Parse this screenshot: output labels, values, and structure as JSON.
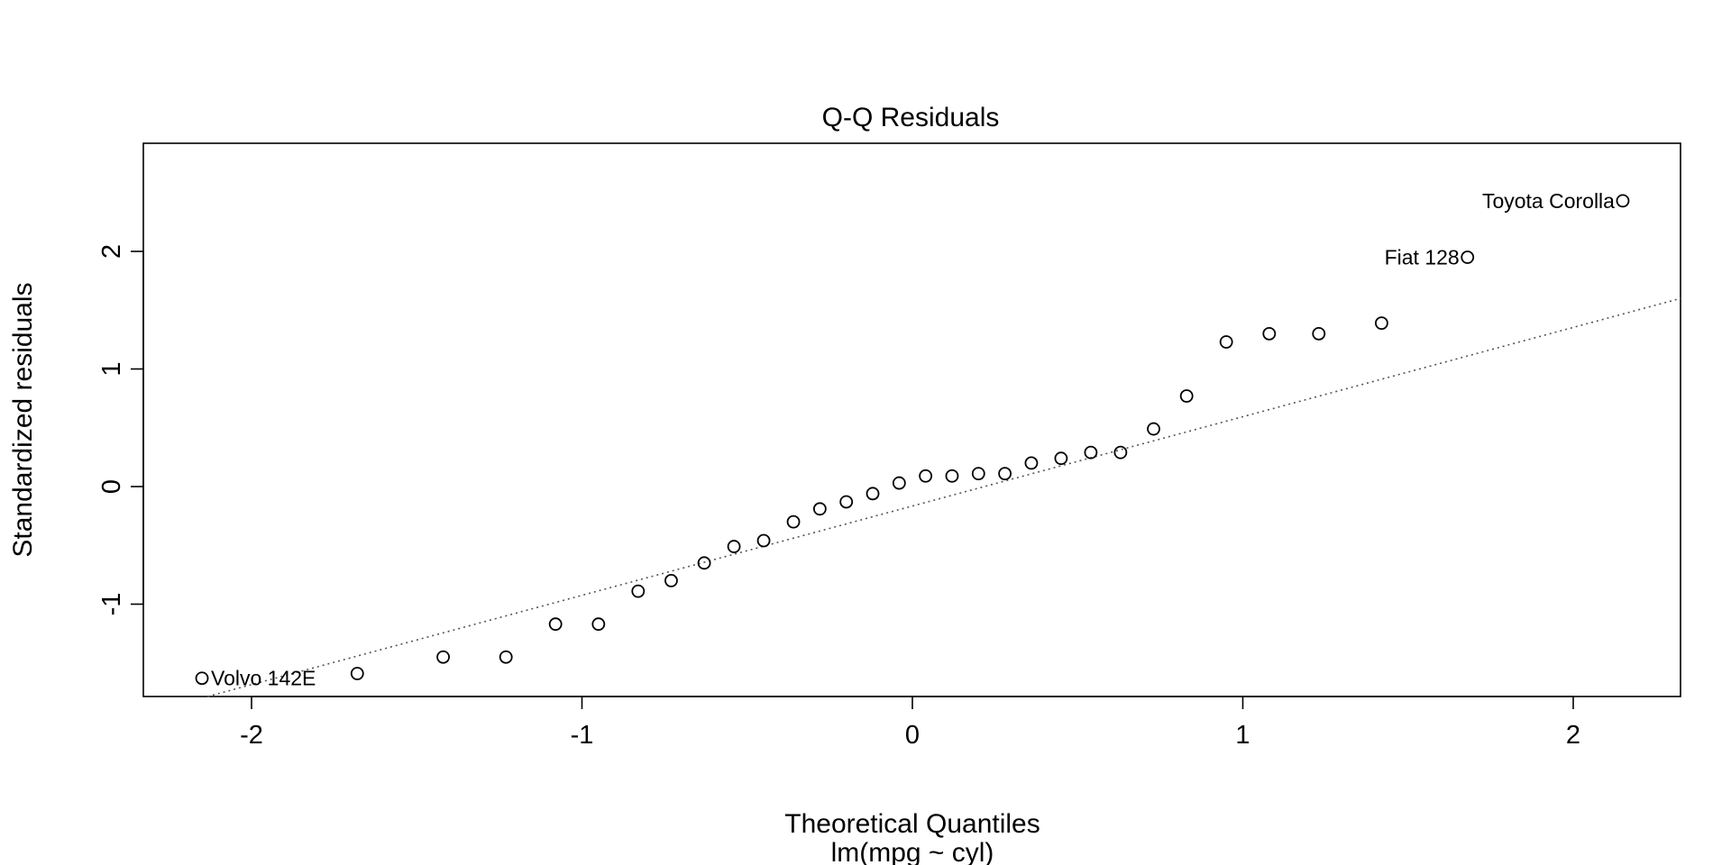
{
  "chart_data": {
    "type": "scatter",
    "title": "Q-Q Residuals",
    "xlabel": "Theoretical Quantiles",
    "subtitle": "lm(mpg ~ cyl)",
    "ylabel": "Standardized residuals",
    "xlim": [
      -2.33,
      2.33
    ],
    "ylim": [
      -1.8,
      2.95
    ],
    "x_ticks": [
      -2,
      -1,
      0,
      1,
      2
    ],
    "y_ticks": [
      -1,
      0,
      1,
      2
    ],
    "grid": false,
    "reference_line": {
      "style": "dotted",
      "x1": -2.33,
      "y1": -1.95,
      "x2": 2.33,
      "y2": 1.6
    },
    "points": [
      {
        "x": -2.15,
        "y": -1.63,
        "label": "Volvo 142E"
      },
      {
        "x": -1.68,
        "y": -1.59
      },
      {
        "x": -1.42,
        "y": -1.45
      },
      {
        "x": -1.23,
        "y": -1.45
      },
      {
        "x": -1.08,
        "y": -1.17
      },
      {
        "x": -0.95,
        "y": -1.17
      },
      {
        "x": -0.83,
        "y": -0.89
      },
      {
        "x": -0.73,
        "y": -0.8
      },
      {
        "x": -0.63,
        "y": -0.65
      },
      {
        "x": -0.54,
        "y": -0.51
      },
      {
        "x": -0.45,
        "y": -0.46
      },
      {
        "x": -0.36,
        "y": -0.3
      },
      {
        "x": -0.28,
        "y": -0.19
      },
      {
        "x": -0.2,
        "y": -0.13
      },
      {
        "x": -0.12,
        "y": -0.06
      },
      {
        "x": -0.04,
        "y": 0.03
      },
      {
        "x": 0.04,
        "y": 0.09
      },
      {
        "x": 0.12,
        "y": 0.09
      },
      {
        "x": 0.2,
        "y": 0.11
      },
      {
        "x": 0.28,
        "y": 0.11
      },
      {
        "x": 0.36,
        "y": 0.2
      },
      {
        "x": 0.45,
        "y": 0.24
      },
      {
        "x": 0.54,
        "y": 0.29
      },
      {
        "x": 0.63,
        "y": 0.29
      },
      {
        "x": 0.73,
        "y": 0.49
      },
      {
        "x": 0.83,
        "y": 0.77
      },
      {
        "x": 0.95,
        "y": 1.23
      },
      {
        "x": 1.08,
        "y": 1.3
      },
      {
        "x": 1.23,
        "y": 1.3
      },
      {
        "x": 1.42,
        "y": 1.39
      },
      {
        "x": 1.68,
        "y": 1.95,
        "label": "Fiat 128"
      },
      {
        "x": 2.15,
        "y": 2.43,
        "label": "Toyota Corolla"
      }
    ]
  }
}
